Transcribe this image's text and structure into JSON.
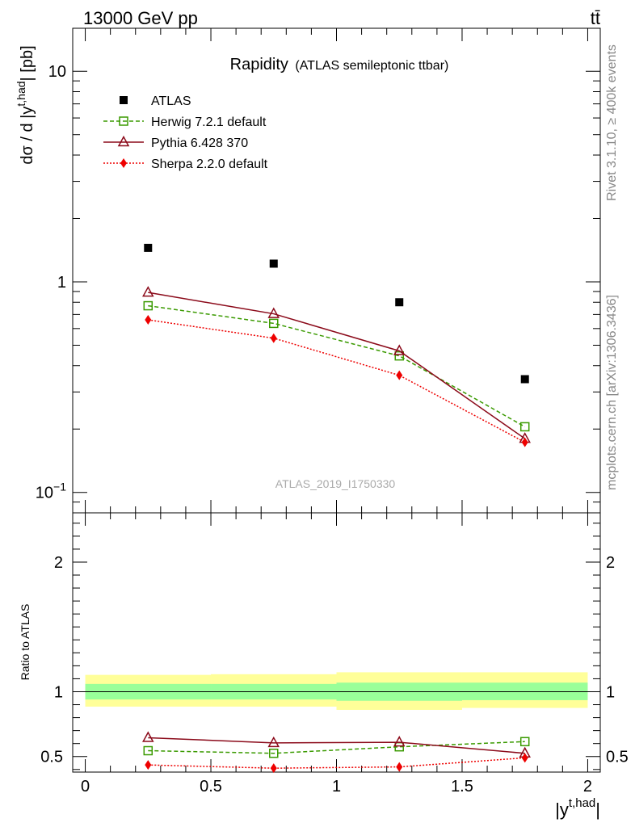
{
  "header": {
    "energy_label": "13000 GeV pp",
    "process_label": "tt̄"
  },
  "side_labels": {
    "rivet": "Rivet 3.1.10, ≥ 400k events",
    "mcplots": "mcplots.cern.ch [arXiv:1306.3436]"
  },
  "chart_data": [
    {
      "panel": "main",
      "type": "scatter",
      "title": "Rapidity",
      "subtitle": "(ATLAS semileptonic ttbar)",
      "watermark": "ATLAS_2019_I1750330",
      "ylabel": "dσ / d |yt,had| [pb]",
      "ylabel_parts": {
        "main": "dσ / d |y",
        "sup": "t,had",
        "tail": "| [pb]"
      },
      "y_scale": "log",
      "xlim": [
        -0.05,
        2.05
      ],
      "ylim": [
        0.08,
        16
      ],
      "y_tick_labels": [
        {
          "value": 0.1,
          "base": "10",
          "exp": "−1"
        },
        {
          "value": 1,
          "base": "1",
          "exp": ""
        },
        {
          "value": 10,
          "base": "10",
          "exp": ""
        }
      ],
      "legend_position": "top-left",
      "x": [
        0.25,
        0.75,
        1.25,
        1.75
      ],
      "series": [
        {
          "name": "ATLAS",
          "color": "#000000",
          "marker": "filled-square",
          "line": "none",
          "values": [
            1.45,
            1.22,
            0.8,
            0.345
          ]
        },
        {
          "name": "Herwig 7.2.1 default",
          "color": "#3a9a00",
          "marker": "open-square",
          "line": "dashed",
          "values": [
            0.77,
            0.635,
            0.445,
            0.205
          ]
        },
        {
          "name": "Pythia 6.428 370",
          "color": "#8b0a1a",
          "marker": "open-triangle",
          "line": "solid",
          "values": [
            0.89,
            0.705,
            0.47,
            0.18
          ]
        },
        {
          "name": "Sherpa 2.2.0 default",
          "color": "#ee0000",
          "marker": "filled-diamond",
          "line": "dotted",
          "values": [
            0.66,
            0.54,
            0.36,
            0.173
          ]
        }
      ]
    },
    {
      "panel": "ratio",
      "type": "line",
      "ylabel": "Ratio to ATLAS",
      "xlabel": "|yt,had|",
      "xlabel_parts": {
        "main": "|y",
        "sup": "t,had",
        "tail": "|"
      },
      "y_scale": "linear",
      "xlim": [
        -0.05,
        2.05
      ],
      "ylim": [
        0.38,
        2.38
      ],
      "x_tick_labels": [
        "0",
        "0.5",
        "1",
        "1.5",
        "2"
      ],
      "x_ticks": [
        0,
        0.5,
        1,
        1.5,
        2
      ],
      "y_tick_labels": [
        "0.5",
        "1",
        "2"
      ],
      "y_ticks": [
        0.5,
        1,
        2
      ],
      "reference_line": 1,
      "uncertainty_bands": [
        {
          "x0": 0.0,
          "x1": 0.5,
          "stat": [
            0.94,
            1.06
          ],
          "total": [
            0.885,
            1.13
          ]
        },
        {
          "x0": 0.5,
          "x1": 1.0,
          "stat": [
            0.94,
            1.06
          ],
          "total": [
            0.885,
            1.135
          ]
        },
        {
          "x0": 1.0,
          "x1": 1.5,
          "stat": [
            0.93,
            1.07
          ],
          "total": [
            0.86,
            1.15
          ]
        },
        {
          "x0": 1.5,
          "x1": 2.0,
          "stat": [
            0.935,
            1.07
          ],
          "total": [
            0.875,
            1.15
          ]
        }
      ],
      "band_colors": {
        "stat": "#99ff99",
        "total": "#ffff99"
      },
      "x": [
        0.25,
        0.75,
        1.25,
        1.75
      ],
      "series": [
        {
          "name": "Herwig 7.2.1 default",
          "color": "#3a9a00",
          "marker": "open-square",
          "line": "dashed",
          "values": [
            0.545,
            0.525,
            0.575,
            0.615
          ]
        },
        {
          "name": "Pythia 6.428 370",
          "color": "#8b0a1a",
          "marker": "open-triangle",
          "line": "solid",
          "values": [
            0.645,
            0.605,
            0.61,
            0.525
          ]
        },
        {
          "name": "Sherpa 2.2.0 default",
          "color": "#ee0000",
          "marker": "filled-diamond",
          "line": "dotted",
          "values": [
            0.435,
            0.41,
            0.42,
            0.49
          ]
        }
      ]
    }
  ]
}
